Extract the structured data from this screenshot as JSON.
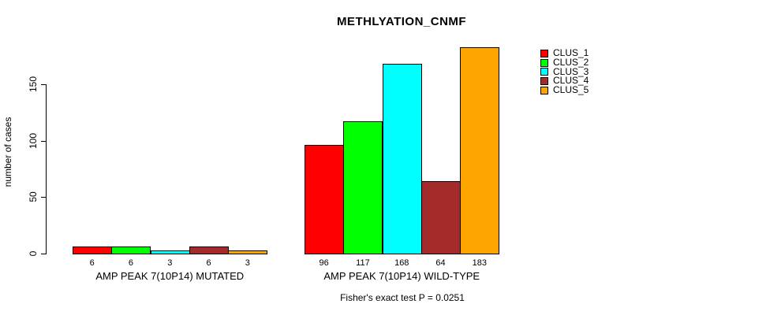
{
  "chart_data": {
    "type": "bar",
    "title": "METHLYATION_CNMF",
    "ylabel": "number of cases",
    "xlabel": "",
    "ylim": [
      0,
      183
    ],
    "yticks": [
      0,
      50,
      100,
      150
    ],
    "grid": false,
    "legend_position": "right",
    "series_names": [
      "CLUS_1",
      "CLUS_2",
      "CLUS_3",
      "CLUS_4",
      "CLUS_5"
    ],
    "colors": [
      "#FF0000",
      "#00FF00",
      "#00FFFF",
      "#A52A2A",
      "#FFA500"
    ],
    "groups": [
      {
        "label": "AMP PEAK 7(10P14) MUTATED",
        "values": [
          6,
          6,
          3,
          6,
          3
        ]
      },
      {
        "label": "AMP PEAK 7(10P14) WILD-TYPE",
        "values": [
          96,
          117,
          168,
          64,
          183
        ]
      }
    ],
    "bar_value_labels": [
      [
        "6",
        "6",
        "3",
        "6",
        "3"
      ],
      [
        "96",
        "117",
        "168",
        "64",
        "183"
      ]
    ],
    "annotation": "Fisher's exact test P = 0.0251"
  }
}
